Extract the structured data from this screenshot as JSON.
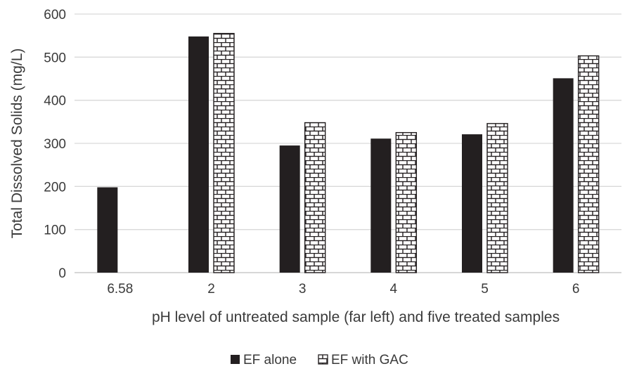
{
  "chart_data": {
    "type": "bar",
    "title": "",
    "xlabel": "pH level of untreated sample (far left) and five treated samples",
    "ylabel": "Total Dissolved Solids (mg/L)",
    "categories": [
      "6.58",
      "2",
      "3",
      "4",
      "5",
      "6"
    ],
    "series": [
      {
        "name": "EF alone",
        "values": [
          198,
          548,
          295,
          311,
          321,
          451
        ],
        "color": "#231f20",
        "pattern": "solid"
      },
      {
        "name": "EF with GAC",
        "values": [
          null,
          555,
          348,
          325,
          346,
          503
        ],
        "color": "#231f20",
        "pattern": "brick"
      }
    ],
    "ylim": [
      0,
      600
    ],
    "yticks": [
      0,
      100,
      200,
      300,
      400,
      500,
      600
    ],
    "grid": true,
    "legend_position": "bottom-center",
    "colors": {
      "gridline": "#d9d9d9",
      "axis": "#bfbfbf",
      "text": "#3a3a3a"
    }
  }
}
